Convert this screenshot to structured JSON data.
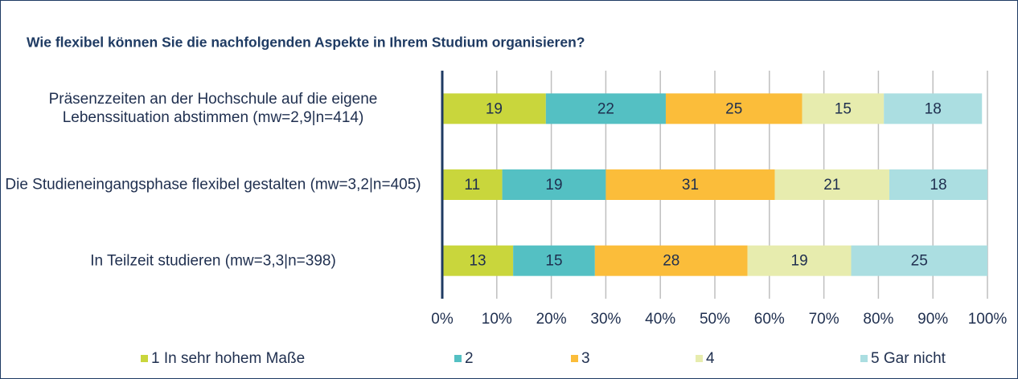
{
  "chart_data": {
    "type": "stacked_barh",
    "title": "Wie flexibel können Sie die nachfolgenden Aspekte in Ihrem Studium organisieren?",
    "categories": [
      "Präsenzzeiten an der Hochschule auf die eigene Lebenssituation abstimmen (mw=2,9|n=414)",
      "Die Studieneingangsphase flexibel gestalten (mw=3,2|n=405)",
      "In Teilzeit studieren (mw=3,3|n=398)"
    ],
    "series": [
      {
        "name": "1 In sehr hohem Maße",
        "color": "#c9d63c",
        "values": [
          19,
          11,
          13
        ]
      },
      {
        "name": "2",
        "color": "#54c0c3",
        "values": [
          22,
          19,
          15
        ]
      },
      {
        "name": "3",
        "color": "#fbbd3a",
        "values": [
          25,
          31,
          28
        ]
      },
      {
        "name": "4",
        "color": "#e7ecae",
        "values": [
          15,
          21,
          19
        ]
      },
      {
        "name": "5 Gar nicht",
        "color": "#abdee1",
        "values": [
          18,
          18,
          25
        ]
      }
    ],
    "xlim": [
      0,
      100
    ],
    "xticks": [
      {
        "value": 0,
        "label": "0%"
      },
      {
        "value": 10,
        "label": "10%"
      },
      {
        "value": 20,
        "label": "20%"
      },
      {
        "value": 30,
        "label": "30%"
      },
      {
        "value": 40,
        "label": "40%"
      },
      {
        "value": 50,
        "label": "50%"
      },
      {
        "value": 60,
        "label": "60%"
      },
      {
        "value": 70,
        "label": "70%"
      },
      {
        "value": 80,
        "label": "80%"
      },
      {
        "value": 90,
        "label": "90%"
      },
      {
        "value": 100,
        "label": "100%"
      }
    ],
    "grid": true,
    "legend": "bottom"
  }
}
